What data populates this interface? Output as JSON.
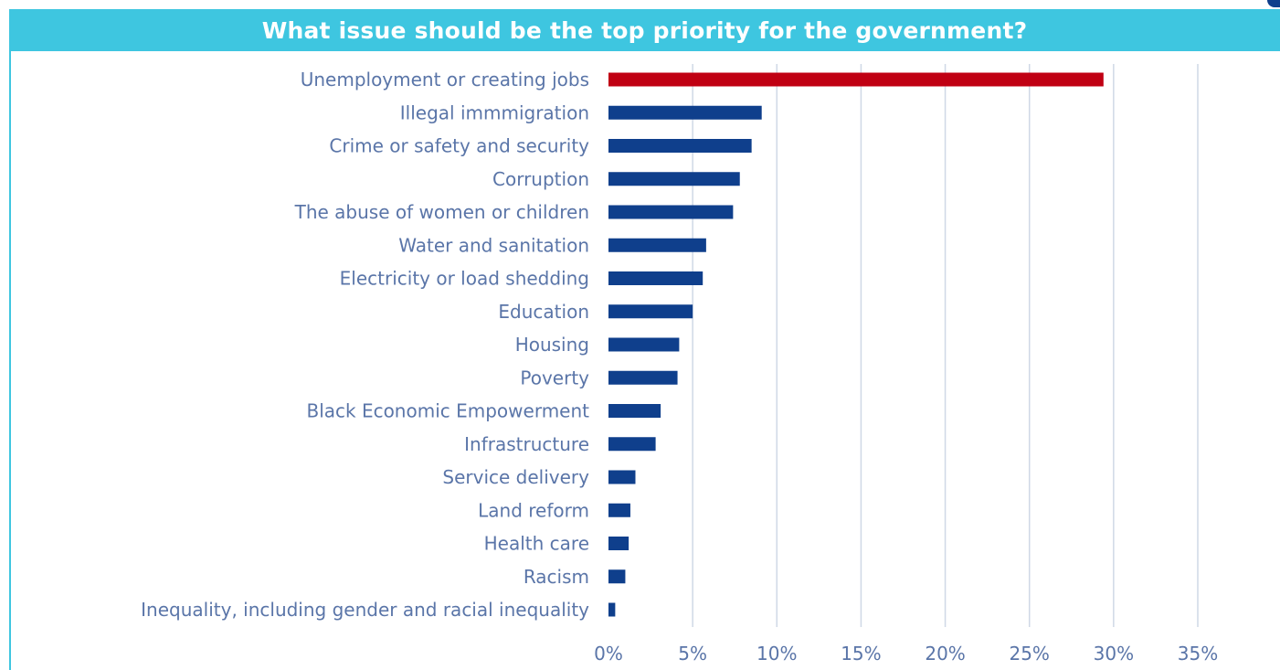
{
  "colors": {
    "title_bar": "#3ec6e0",
    "title_text": "#ffffff",
    "bar_default": "#0f3f8c",
    "bar_highlight": "#c00013",
    "label_text": "#5a75a8",
    "gridline": "#cfd8e6",
    "edge": "#3ec6e0"
  },
  "chart_data": {
    "type": "bar",
    "orientation": "horizontal",
    "title": "What issue should be the top priority for the government?",
    "categories": [
      "Unemployment or creating jobs",
      "Illegal immmigration",
      "Crime or safety and security",
      "Corruption",
      "The abuse of women or children",
      "Water and sanitation",
      "Electricity or load shedding",
      "Education",
      "Housing",
      "Poverty",
      "Black Economic Empowerment",
      "Infrastructure",
      "Service delivery",
      "Land reform",
      "Health care",
      "Racism",
      "Inequality, including gender and racial inequality"
    ],
    "values": [
      29.4,
      9.1,
      8.5,
      7.8,
      7.4,
      5.8,
      5.6,
      5.0,
      4.2,
      4.1,
      3.1,
      2.8,
      1.6,
      1.3,
      1.2,
      1.0,
      0.4
    ],
    "highlight_index": 0,
    "xlim": [
      0,
      35
    ],
    "xticks": [
      0,
      5,
      10,
      15,
      20,
      25,
      30,
      35
    ],
    "xtick_labels": [
      "0%",
      "5%",
      "10%",
      "15%",
      "20%",
      "25%",
      "30%",
      "35%"
    ],
    "xlabel": "",
    "ylabel": "",
    "grid": "vertical",
    "legend": "none"
  }
}
